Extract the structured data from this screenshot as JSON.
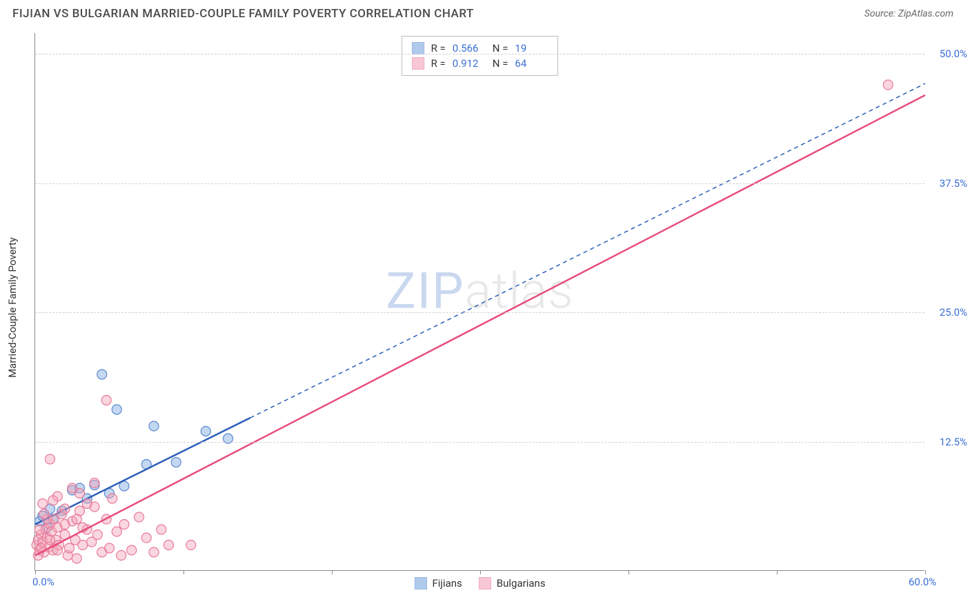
{
  "header": {
    "title": "FIJIAN VS BULGARIAN MARRIED-COUPLE FAMILY POVERTY CORRELATION CHART",
    "source_prefix": "Source: ",
    "source_name": "ZipAtlas.com"
  },
  "chart": {
    "type": "scatter",
    "y_axis_label": "Married-Couple Family Poverty",
    "xlim": [
      0,
      60
    ],
    "ylim": [
      0,
      52
    ],
    "x_ticks": [
      0,
      10,
      20,
      30,
      40,
      50,
      60
    ],
    "x_tick_labels": {
      "0": "0.0%",
      "60": "60.0%"
    },
    "y_ticks": [
      12.5,
      25.0,
      37.5,
      50.0
    ],
    "y_tick_labels": [
      "12.5%",
      "25.0%",
      "37.5%",
      "50.0%"
    ],
    "grid_color": "#d0d0d0",
    "axis_color": "#888888",
    "label_color": "#3b6fd4",
    "background_color": "#ffffff",
    "marker_radius": 7,
    "marker_stroke_width": 1.2,
    "series": [
      {
        "id": "fijians",
        "label": "Fijians",
        "fill": "#7ca8e0",
        "fill_opacity": 0.45,
        "stroke": "#5a8ad0",
        "line_color": "#2a5db8",
        "line_width": 2.5,
        "dash_extend": "6,5",
        "R": "0.566",
        "N": "19",
        "points": [
          [
            0.3,
            4.8
          ],
          [
            0.5,
            5.3
          ],
          [
            0.8,
            4.2
          ],
          [
            1.0,
            6.0
          ],
          [
            1.2,
            5.0
          ],
          [
            1.8,
            5.8
          ],
          [
            2.5,
            7.8
          ],
          [
            3.0,
            8.0
          ],
          [
            3.5,
            7.0
          ],
          [
            4.0,
            8.3
          ],
          [
            4.5,
            19.0
          ],
          [
            5.5,
            15.6
          ],
          [
            6.0,
            8.2
          ],
          [
            7.5,
            10.3
          ],
          [
            8.0,
            14.0
          ],
          [
            9.5,
            10.5
          ],
          [
            11.5,
            13.5
          ],
          [
            13.0,
            12.8
          ],
          [
            5.0,
            7.5
          ]
        ],
        "trend": {
          "x1": 0,
          "y1": 4.5,
          "x2": 14.5,
          "y2": 14.8,
          "extend_to_x": 60
        }
      },
      {
        "id": "bulgarians",
        "label": "Bulgarians",
        "fill": "#f5a3b8",
        "fill_opacity": 0.45,
        "stroke": "#e87a9a",
        "line_color": "#e84c7a",
        "line_width": 2.5,
        "R": "0.912",
        "N": "64",
        "points": [
          [
            0.1,
            2.5
          ],
          [
            0.2,
            3.0
          ],
          [
            0.3,
            2.0
          ],
          [
            0.4,
            3.5
          ],
          [
            0.5,
            2.8
          ],
          [
            0.6,
            1.8
          ],
          [
            0.7,
            4.0
          ],
          [
            0.8,
            3.2
          ],
          [
            0.9,
            2.3
          ],
          [
            1.0,
            4.5
          ],
          [
            1.1,
            3.8
          ],
          [
            1.2,
            2.0
          ],
          [
            1.3,
            5.0
          ],
          [
            1.4,
            3.0
          ],
          [
            1.5,
            4.2
          ],
          [
            1.6,
            2.5
          ],
          [
            1.8,
            5.5
          ],
          [
            2.0,
            3.5
          ],
          [
            2.2,
            1.5
          ],
          [
            2.3,
            2.2
          ],
          [
            2.5,
            4.8
          ],
          [
            2.7,
            3.0
          ],
          [
            2.8,
            1.2
          ],
          [
            3.0,
            5.8
          ],
          [
            3.2,
            2.5
          ],
          [
            3.5,
            4.0
          ],
          [
            3.8,
            2.8
          ],
          [
            4.0,
            6.2
          ],
          [
            4.2,
            3.5
          ],
          [
            4.5,
            1.8
          ],
          [
            4.8,
            5.0
          ],
          [
            5.0,
            2.2
          ],
          [
            5.2,
            7.0
          ],
          [
            5.5,
            3.8
          ],
          [
            5.8,
            1.5
          ],
          [
            6.0,
            4.5
          ],
          [
            6.5,
            2.0
          ],
          [
            7.0,
            5.2
          ],
          [
            7.5,
            3.2
          ],
          [
            8.0,
            1.8
          ],
          [
            8.5,
            4.0
          ],
          [
            9.0,
            2.5
          ],
          [
            1.0,
            10.8
          ],
          [
            4.8,
            16.5
          ],
          [
            0.5,
            6.5
          ],
          [
            1.5,
            7.2
          ],
          [
            2.0,
            6.0
          ],
          [
            3.0,
            7.5
          ],
          [
            0.8,
            5.0
          ],
          [
            1.2,
            6.8
          ],
          [
            2.5,
            8.0
          ],
          [
            3.5,
            6.5
          ],
          [
            4.0,
            8.5
          ],
          [
            1.0,
            3.0
          ],
          [
            1.5,
            2.0
          ],
          [
            2.0,
            4.5
          ],
          [
            0.3,
            4.0
          ],
          [
            0.6,
            5.5
          ],
          [
            2.8,
            5.0
          ],
          [
            3.2,
            4.2
          ],
          [
            10.5,
            2.5
          ],
          [
            0.2,
            1.5
          ],
          [
            0.4,
            2.2
          ],
          [
            57.5,
            47.0
          ]
        ],
        "trend": {
          "x1": 0,
          "y1": 1.5,
          "x2": 60,
          "y2": 46.0
        }
      }
    ]
  },
  "stats_legend": {
    "R_label": "R =",
    "N_label": "N ="
  },
  "watermark": {
    "part1": "ZIP",
    "part2": "atlas"
  }
}
